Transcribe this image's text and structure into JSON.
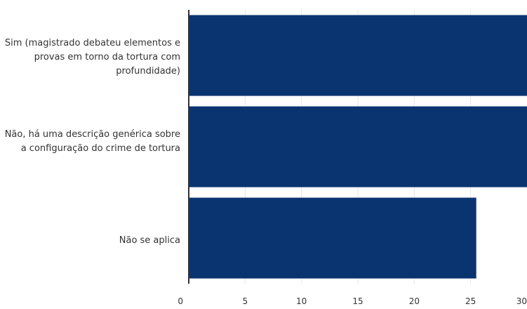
{
  "chart_data": {
    "type": "bar",
    "orientation": "horizontal",
    "title": "",
    "xlabel": "",
    "ylabel": "",
    "categories": [
      "Sim (magistrado debateu elementos e provas em torno da tortura com profundidade)",
      "Não, há uma descrição genérica sobre a configuração do crime de tortura",
      "Não se aplica"
    ],
    "values": [
      30,
      30,
      25.5
    ],
    "xlim": [
      0,
      30
    ],
    "x_ticks": [
      "0",
      "5",
      "10",
      "15",
      "20",
      "25",
      "30"
    ],
    "grid": "vertical",
    "legend": "none",
    "bar_color": "#0a3470",
    "grid_color": "#e6e6e6",
    "axis_color": "#333333"
  }
}
